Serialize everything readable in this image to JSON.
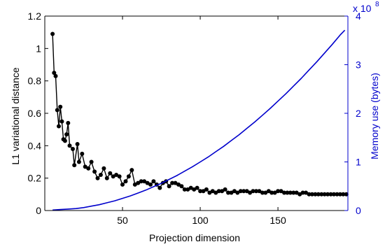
{
  "colors": {
    "left_axis": "#000000",
    "right_axis": "#0000cc",
    "background": "#ffffff"
  },
  "chart_data": {
    "type": "line",
    "title": "",
    "xlabel": "Projection dimension",
    "ylabel_left": "L1 variational distance",
    "ylabel_right": "Memory use (bytes)",
    "right_axis_multiplier": "x 10",
    "right_axis_exponent": "8",
    "xlim": [
      0,
      195
    ],
    "ylim_left": [
      0,
      1.2
    ],
    "ylim_right": [
      0,
      4
    ],
    "grid": false,
    "legend": "none",
    "x_ticks": [
      "50",
      "100",
      "150"
    ],
    "x_tick_values": [
      50,
      100,
      150
    ],
    "left_ticks": [
      "0",
      "0.2",
      "0.4",
      "0.6",
      "0.8",
      "1",
      "1.2"
    ],
    "left_tick_values": [
      0,
      0.2,
      0.4,
      0.6,
      0.8,
      1.0,
      1.2
    ],
    "right_ticks": [
      "0",
      "1",
      "2",
      "3",
      "4"
    ],
    "right_tick_values": [
      0,
      1,
      2,
      3,
      4
    ],
    "series": [
      {
        "axis": "left",
        "color": "#000000",
        "marker": "dot",
        "x": [
          5,
          6,
          7,
          8,
          9,
          10,
          11,
          12,
          13,
          14,
          15,
          16,
          18,
          19,
          21,
          22,
          24,
          26,
          28,
          30,
          32,
          34,
          36,
          38,
          40,
          42,
          44,
          46,
          48,
          50,
          52,
          54,
          56,
          58,
          60,
          62,
          64,
          66,
          68,
          70,
          72,
          74,
          76,
          78,
          80,
          82,
          84,
          86,
          88,
          90,
          92,
          94,
          96,
          98,
          100,
          102,
          104,
          106,
          108,
          110,
          112,
          114,
          116,
          118,
          120,
          122,
          124,
          126,
          128,
          130,
          132,
          134,
          136,
          138,
          140,
          142,
          144,
          146,
          148,
          150,
          152,
          154,
          156,
          158,
          160,
          162,
          164,
          166,
          168,
          170,
          172,
          174,
          176,
          178,
          180,
          182,
          184,
          186,
          188,
          190,
          192,
          194
        ],
        "y": [
          1.09,
          0.85,
          0.83,
          0.62,
          0.52,
          0.64,
          0.55,
          0.44,
          0.43,
          0.47,
          0.54,
          0.4,
          0.38,
          0.28,
          0.41,
          0.3,
          0.35,
          0.27,
          0.26,
          0.3,
          0.24,
          0.2,
          0.22,
          0.26,
          0.2,
          0.23,
          0.21,
          0.22,
          0.21,
          0.16,
          0.18,
          0.21,
          0.25,
          0.16,
          0.17,
          0.18,
          0.18,
          0.17,
          0.16,
          0.18,
          0.16,
          0.14,
          0.17,
          0.18,
          0.15,
          0.17,
          0.17,
          0.16,
          0.15,
          0.13,
          0.13,
          0.14,
          0.13,
          0.14,
          0.12,
          0.12,
          0.13,
          0.11,
          0.12,
          0.11,
          0.12,
          0.12,
          0.13,
          0.11,
          0.11,
          0.12,
          0.11,
          0.12,
          0.12,
          0.12,
          0.11,
          0.12,
          0.12,
          0.12,
          0.11,
          0.11,
          0.12,
          0.11,
          0.11,
          0.12,
          0.12,
          0.11,
          0.11,
          0.11,
          0.11,
          0.11,
          0.1,
          0.11,
          0.11,
          0.1,
          0.1,
          0.1,
          0.1,
          0.1,
          0.1,
          0.1,
          0.1,
          0.1,
          0.1,
          0.1,
          0.1,
          0.1
        ]
      },
      {
        "axis": "right",
        "color": "#0000cc",
        "marker": "none",
        "x": [
          5,
          10,
          15,
          20,
          25,
          30,
          35,
          40,
          45,
          50,
          55,
          60,
          65,
          70,
          75,
          80,
          85,
          90,
          95,
          100,
          105,
          110,
          115,
          120,
          125,
          130,
          135,
          140,
          145,
          150,
          155,
          160,
          165,
          170,
          175,
          180,
          185,
          190,
          193
        ],
        "y": [
          0.01,
          0.02,
          0.03,
          0.04,
          0.06,
          0.09,
          0.12,
          0.16,
          0.2,
          0.25,
          0.3,
          0.36,
          0.42,
          0.49,
          0.56,
          0.64,
          0.72,
          0.81,
          0.9,
          1.0,
          1.1,
          1.21,
          1.32,
          1.44,
          1.56,
          1.69,
          1.82,
          1.96,
          2.1,
          2.25,
          2.4,
          2.56,
          2.72,
          2.89,
          3.06,
          3.24,
          3.42,
          3.61,
          3.71
        ]
      }
    ]
  }
}
